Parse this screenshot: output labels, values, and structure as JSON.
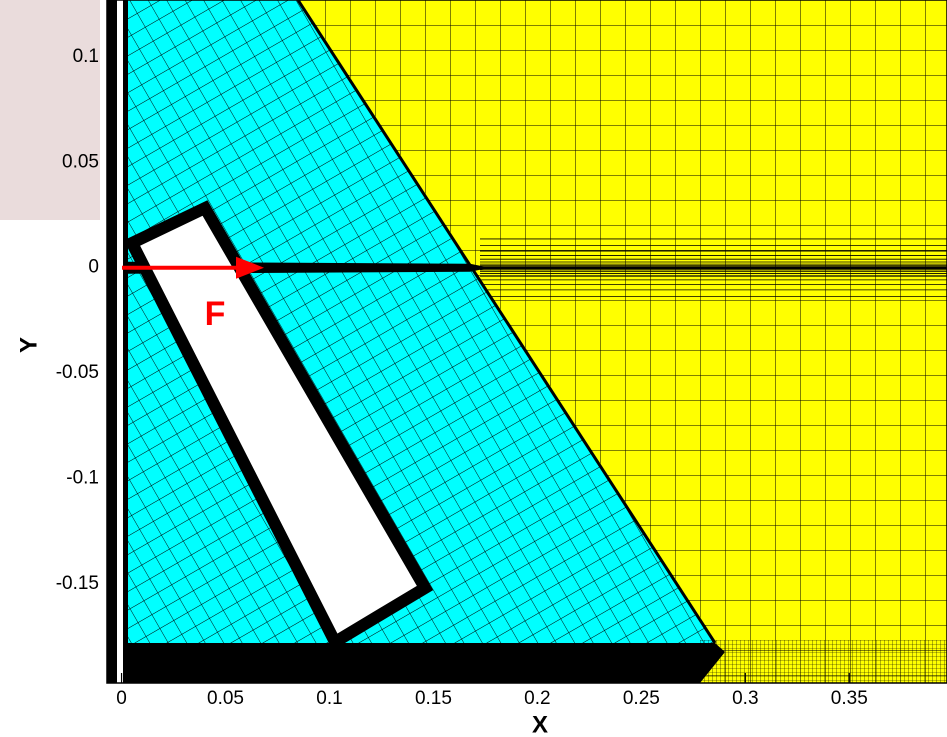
{
  "chart_data": {
    "type": "mesh",
    "x_label": "X",
    "y_label": "Y",
    "annotation": "F",
    "xlim": [
      -0.007,
      0.397
    ],
    "ylim": [
      -0.197,
      0.127
    ],
    "xticks": [
      0,
      0.05,
      0.1,
      0.15,
      0.2,
      0.25,
      0.3,
      0.35
    ],
    "yticks": [
      -0.15,
      -0.1,
      -0.05,
      0,
      0.05,
      0.1
    ],
    "colors": {
      "fluid": "#ffff00",
      "refined": "#00ffff",
      "force": "#ff0000"
    }
  }
}
